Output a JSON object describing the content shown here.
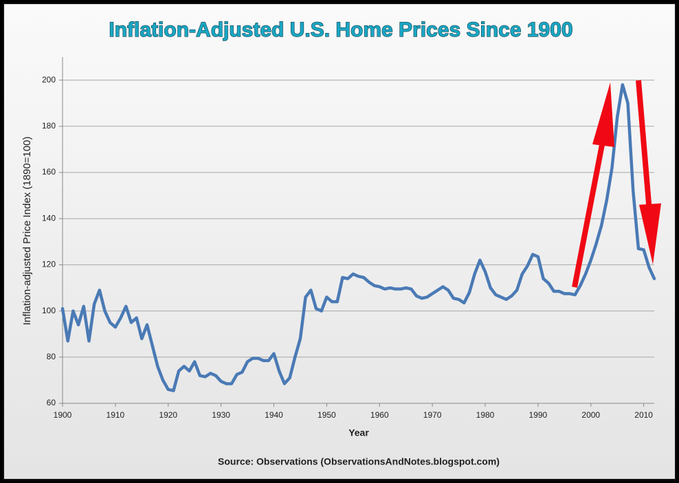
{
  "chart_data": {
    "type": "line",
    "title": "Inflation-Adjusted U.S. Home Prices Since 1900",
    "x_label": "Year",
    "y_label": "Inflation-adjusted  Price Index (1890=100)",
    "source": "Source: Observations  (ObservationsAndNotes.blogspot.com)",
    "x": [
      1900,
      1901,
      1902,
      1903,
      1904,
      1905,
      1906,
      1907,
      1908,
      1909,
      1910,
      1911,
      1912,
      1913,
      1914,
      1915,
      1916,
      1917,
      1918,
      1919,
      1920,
      1921,
      1922,
      1923,
      1924,
      1925,
      1926,
      1927,
      1928,
      1929,
      1930,
      1931,
      1932,
      1933,
      1934,
      1935,
      1936,
      1937,
      1938,
      1939,
      1940,
      1941,
      1942,
      1943,
      1944,
      1945,
      1946,
      1947,
      1948,
      1949,
      1950,
      1951,
      1952,
      1953,
      1954,
      1955,
      1956,
      1957,
      1958,
      1959,
      1960,
      1961,
      1962,
      1963,
      1964,
      1965,
      1966,
      1967,
      1968,
      1969,
      1970,
      1971,
      1972,
      1973,
      1974,
      1975,
      1976,
      1977,
      1978,
      1979,
      1980,
      1981,
      1982,
      1983,
      1984,
      1985,
      1986,
      1987,
      1988,
      1989,
      1990,
      1991,
      1992,
      1993,
      1994,
      1995,
      1996,
      1997,
      1998,
      1999,
      2000,
      2001,
      2002,
      2003,
      2004,
      2005,
      2006,
      2007,
      2008,
      2009,
      2010,
      2011,
      2012
    ],
    "series": [
      {
        "name": "Price Index",
        "color": "#4a7ab5",
        "values": [
          101,
          87,
          100,
          94,
          102,
          87,
          103,
          109,
          100,
          95,
          93,
          97,
          102,
          95,
          97,
          88,
          94,
          85,
          76,
          70,
          66,
          65.5,
          74,
          76,
          74,
          78,
          72,
          71.5,
          73,
          72,
          69.5,
          68.5,
          68.5,
          72.5,
          73.5,
          78,
          79.5,
          79.5,
          78.5,
          78.5,
          81.5,
          74,
          68.5,
          71,
          80,
          88,
          106,
          109,
          101,
          100,
          106,
          104,
          104,
          114.5,
          114,
          116,
          115,
          114.5,
          112.5,
          111,
          110.5,
          109.5,
          110,
          109.5,
          109.5,
          110,
          109.5,
          106.5,
          105.5,
          106,
          107.5,
          109,
          110.5,
          109,
          105.5,
          105,
          103.5,
          108,
          116,
          122,
          117,
          110,
          107,
          106,
          105,
          106.5,
          109,
          116,
          119.5,
          124.5,
          123.5,
          114,
          112,
          108.5,
          108.5,
          107.5,
          107.5,
          107,
          111,
          116,
          122,
          129,
          137,
          148,
          162,
          184,
          198,
          190,
          152,
          127,
          126.5,
          119,
          114
        ]
      }
    ],
    "xlim": [
      1900,
      2012
    ],
    "ylim": [
      60,
      210
    ],
    "xticks": [
      1900,
      1910,
      1920,
      1930,
      1940,
      1950,
      1960,
      1970,
      1980,
      1990,
      2000,
      2010
    ],
    "yticks": [
      60,
      80,
      100,
      120,
      140,
      160,
      180,
      200
    ],
    "grid": true
  }
}
